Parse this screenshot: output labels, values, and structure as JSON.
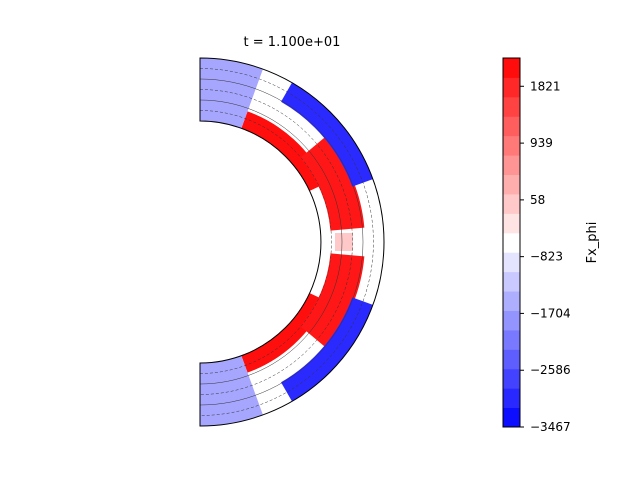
{
  "chart_data": {
    "type": "heatmap",
    "title": "t = 1.100e+01",
    "xlabel": "",
    "ylabel": "",
    "domain": "meridional half-annulus (spherical shell cross-section)",
    "colormap": "bwr",
    "colorbar": {
      "label": "Fx_phi",
      "vmin": -3467,
      "vmax": 2260,
      "levels": 19,
      "ticks": [
        -3467,
        -2586,
        -1704,
        -823,
        58,
        939,
        1821
      ],
      "tick_labels": [
        "−3467",
        "−2586",
        "−1704",
        "−823",
        "58",
        "939",
        "1821"
      ]
    },
    "features": [
      {
        "name": "inner-boundary-band",
        "latitude_deg": [
          25,
          70
        ],
        "hemisphere": "both",
        "value": 2100
      },
      {
        "name": "equatorial-lobe",
        "latitude_deg": [
          5,
          40
        ],
        "hemisphere": "both",
        "value": 2000
      },
      {
        "name": "equatorial-minimum",
        "latitude_deg": [
          0,
          0
        ],
        "value": 0
      },
      {
        "name": "outer-edge-negative",
        "latitude_deg": [
          20,
          60
        ],
        "hemisphere": "both",
        "value": -3000
      },
      {
        "name": "polar-negative",
        "latitude_deg": [
          70,
          90
        ],
        "hemisphere": "both",
        "value": -1600
      }
    ]
  }
}
